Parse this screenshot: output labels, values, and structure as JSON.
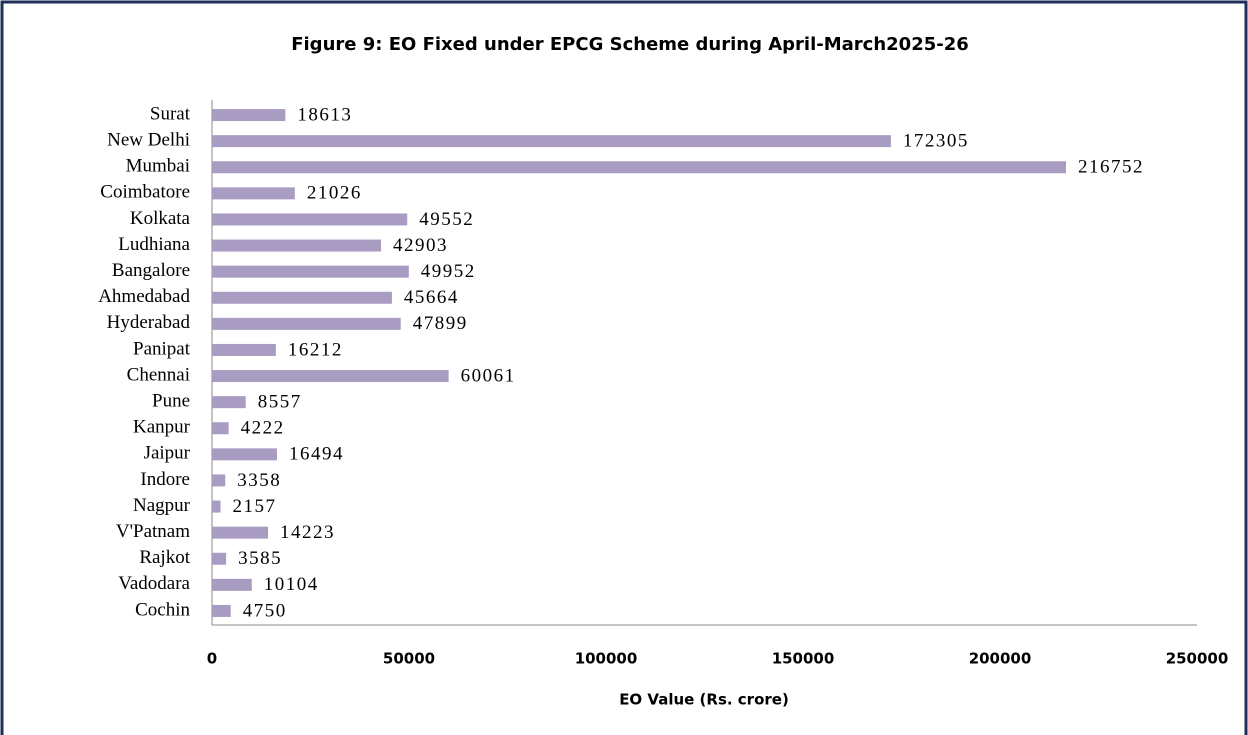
{
  "chart_data": {
    "type": "bar",
    "orientation": "horizontal",
    "title": "Figure 9: EO Fixed under EPCG Scheme during April-March2025-26",
    "x_label": "EO Value (Rs. crore)",
    "categories": [
      "Surat",
      "New Delhi",
      "Mumbai",
      "Coimbatore",
      "Kolkata",
      "Ludhiana",
      "Bangalore",
      "Ahmedabad",
      "Hyderabad",
      "Panipat",
      "Chennai",
      "Pune",
      "Kanpur",
      "Jaipur",
      "Indore",
      "Nagpur",
      "V'Patnam",
      "Rajkot",
      "Vadodara",
      "Cochin"
    ],
    "values": [
      18613,
      172305,
      216752,
      21026,
      49552,
      42903,
      49952,
      45664,
      47899,
      16212,
      60061,
      8557,
      4222,
      16494,
      3358,
      2157,
      14223,
      3585,
      10104,
      4750
    ],
    "color": "#a99cc2",
    "xlim": [
      0,
      250000
    ],
    "xticks": [
      0,
      50000,
      100000,
      150000,
      200000,
      250000
    ],
    "grid": false
  }
}
